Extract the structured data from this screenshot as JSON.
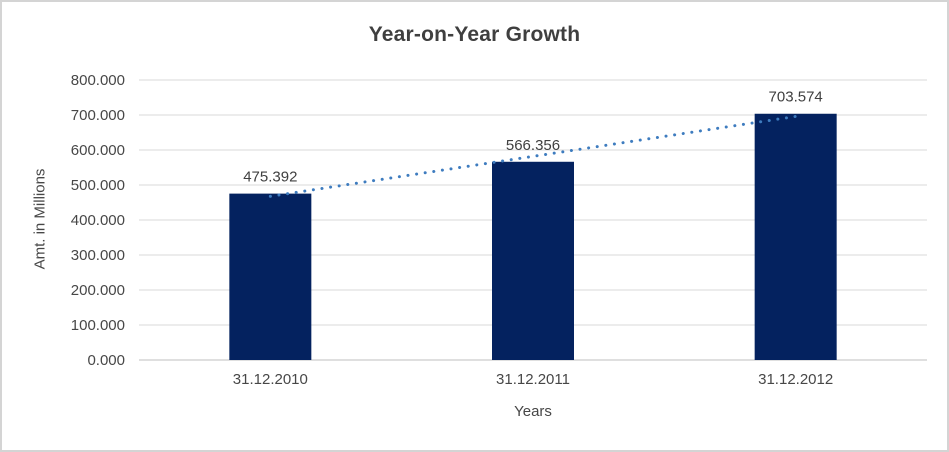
{
  "window": {
    "background": "#ffffff",
    "border_color": "#d4d4d4"
  },
  "chart_data": {
    "type": "bar",
    "title": "Year-on-Year Growth",
    "xlabel": "Years",
    "ylabel": "Amt. in Millions",
    "categories": [
      "31.12.2010",
      "31.12.2011",
      "31.12.2012"
    ],
    "values": [
      475.392,
      566.356,
      703.574
    ],
    "value_labels": [
      "475.392",
      "566.356",
      "703.574"
    ],
    "ylim": [
      0,
      800
    ],
    "y_tick_values": [
      0,
      100,
      200,
      300,
      400,
      500,
      600,
      700,
      800
    ],
    "y_tick_labels": [
      "0.000",
      "100.000",
      "200.000",
      "300.000",
      "400.000",
      "500.000",
      "600.000",
      "700.000",
      "800.000"
    ],
    "grid": true,
    "legend": false,
    "trendline": {
      "fit": "linear",
      "style": "dotted",
      "color": "#3e7cbf"
    },
    "colors": {
      "bar": "#04225f",
      "gridline": "#d9d9d9",
      "axis_line": "#bfbfbf",
      "title_text": "#3f3f3f",
      "tick_text": "#474747",
      "data_label_text": "#404040"
    }
  }
}
